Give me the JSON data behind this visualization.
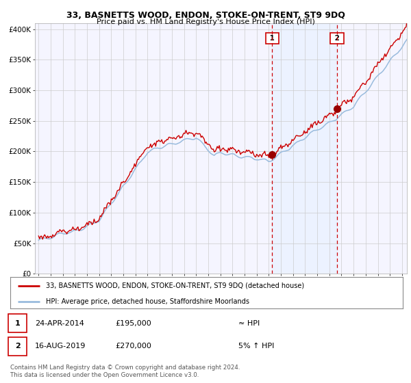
{
  "title": "33, BASNETTS WOOD, ENDON, STOKE-ON-TRENT, ST9 9DQ",
  "subtitle": "Price paid vs. HM Land Registry's House Price Index (HPI)",
  "ylim": [
    0,
    410000
  ],
  "yticks": [
    0,
    50000,
    100000,
    150000,
    200000,
    250000,
    300000,
    350000,
    400000
  ],
  "ytick_labels": [
    "£0",
    "£50K",
    "£100K",
    "£150K",
    "£200K",
    "£250K",
    "£300K",
    "£350K",
    "£400K"
  ],
  "sale1_date": 2014.29,
  "sale1_price": 195000,
  "sale1_label": "1",
  "sale2_date": 2019.62,
  "sale2_price": 270000,
  "sale2_label": "2",
  "line_color": "#cc0000",
  "hpi_color": "#99bbdd",
  "shade_color": "#ddeeff",
  "vline_color": "#cc0000",
  "legend_line1": "33, BASNETTS WOOD, ENDON, STOKE-ON-TRENT, ST9 9DQ (detached house)",
  "legend_line2": "HPI: Average price, detached house, Staffordshire Moorlands",
  "annotation1_date": "24-APR-2014",
  "annotation1_price": "£195,000",
  "annotation1_hpi": "≈ HPI",
  "annotation2_date": "16-AUG-2019",
  "annotation2_price": "£270,000",
  "annotation2_hpi": "5% ↑ HPI",
  "footer1": "Contains HM Land Registry data © Crown copyright and database right 2024.",
  "footer2": "This data is licensed under the Open Government Licence v3.0.",
  "background_color": "#ffffff",
  "plot_bg_color": "#f5f5ff",
  "grid_color": "#cccccc"
}
